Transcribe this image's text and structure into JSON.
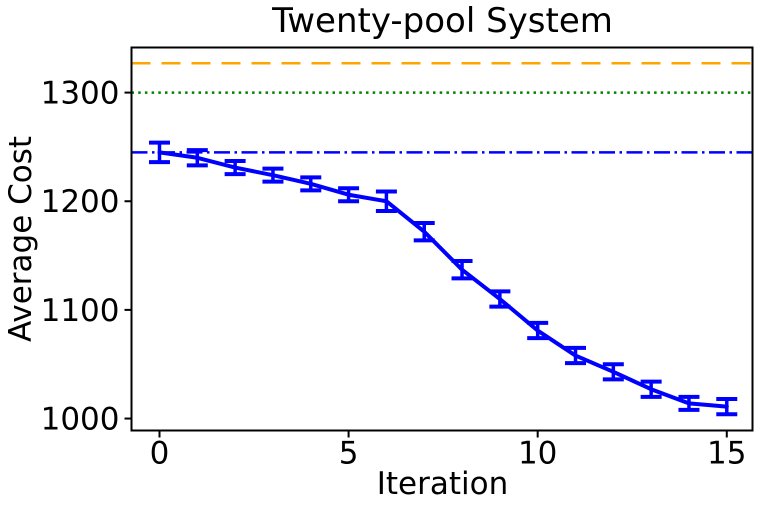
{
  "figure": {
    "background": "#ffffff",
    "text_color": "#000000",
    "spine_color": "#000000"
  },
  "chart_data": {
    "type": "line",
    "title": "Twenty-pool System",
    "xlabel": "Iteration",
    "ylabel": "Average Cost",
    "x": [
      0,
      1,
      2,
      3,
      4,
      5,
      6,
      7,
      8,
      9,
      10,
      11,
      12,
      13,
      14,
      15
    ],
    "series": [
      {
        "name": "average-cost-errorbar-series",
        "color": "#0000ff",
        "values": [
          1245,
          1240,
          1231,
          1224,
          1216,
          1206,
          1200,
          1172,
          1137,
          1110,
          1081,
          1058,
          1043,
          1027,
          1014,
          1011
        ],
        "errors": [
          9,
          7,
          6,
          6,
          6,
          6,
          9,
          8,
          8,
          7,
          7,
          7,
          7,
          7,
          6,
          7
        ]
      }
    ],
    "hlines": [
      {
        "name": "reference-upper",
        "value": 1327,
        "color": "#ffa500",
        "style": "dashed"
      },
      {
        "name": "reference-middle",
        "value": 1300,
        "color": "#008000",
        "style": "dotted"
      },
      {
        "name": "reference-initial",
        "value": 1245,
        "color": "#0000ff",
        "style": "dashdot"
      }
    ],
    "xticks": [
      0,
      5,
      10,
      15
    ],
    "yticks": [
      1000,
      1100,
      1200,
      1300
    ],
    "xlim": [
      -0.74,
      15.68
    ],
    "ylim": [
      989,
      1341.5
    ],
    "grid": false,
    "legend": "none"
  }
}
